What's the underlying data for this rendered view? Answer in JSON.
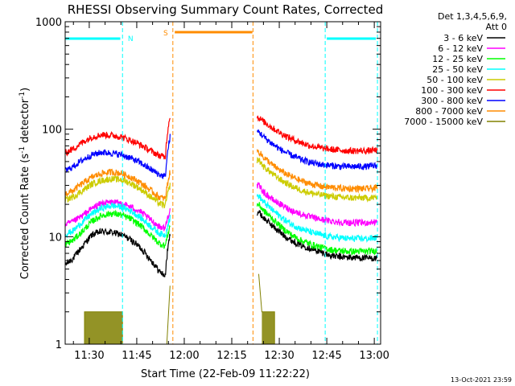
{
  "chart_data": {
    "type": "line",
    "title": "RHESSI Observing Summary Count Rates, Corrected",
    "xlabel": "Start Time (22-Feb-09 11:22:22)",
    "ylabel": "Corrected Count Rate (s",
    "ylabel_sup1": "-1",
    "ylabel_mid": " detector",
    "ylabel_sup2": "-1",
    "ylabel_end": ")",
    "yscale": "log",
    "ylim": [
      1,
      1000
    ],
    "xlim_min": [
      22.4,
      122.0
    ],
    "x_ticks": [
      {
        "value": 30,
        "label": "11:30"
      },
      {
        "value": 45,
        "label": "11:45"
      },
      {
        "value": 60,
        "label": "12:00"
      },
      {
        "value": 75,
        "label": "12:15"
      },
      {
        "value": 90,
        "label": "12:30"
      },
      {
        "value": 105,
        "label": "12:45"
      },
      {
        "value": 120,
        "label": "13:00"
      }
    ],
    "y_ticks": [
      {
        "value": 1,
        "label": "1"
      },
      {
        "value": 10,
        "label": "10"
      },
      {
        "value": 100,
        "label": "100"
      },
      {
        "value": 1000,
        "label": "1000"
      }
    ],
    "legend": {
      "placement": "top-right",
      "header1": "Det 1,3,4,5,6,9,",
      "header2": "Att 0"
    },
    "gaps": [
      [
        55.6,
        83.0
      ]
    ],
    "series": [
      {
        "name": "3 - 6 keV",
        "color": "#000000",
        "x": [
          22.4,
          25,
          28,
          31,
          34,
          37,
          40,
          43,
          46,
          49,
          52,
          54,
          55.5,
          83.5,
          85,
          88,
          91,
          94,
          97,
          100,
          103,
          106,
          109,
          112,
          115,
          118,
          121
        ],
        "values": [
          5.5,
          6.3,
          8.2,
          10.5,
          11.2,
          11.0,
          10.5,
          9.4,
          8.0,
          6.3,
          4.8,
          4.3,
          10.5,
          17,
          15,
          12.5,
          10.5,
          9.2,
          8.3,
          7.8,
          7.2,
          6.7,
          6.5,
          6.4,
          6.4,
          6.3,
          6.3
        ]
      },
      {
        "name": "6 - 12 keV",
        "color": "#ff00ff",
        "x": [
          22.4,
          25,
          28,
          31,
          34,
          37,
          40,
          43,
          46,
          49,
          52,
          54,
          55.5,
          83.5,
          85,
          88,
          91,
          94,
          97,
          100,
          103,
          106,
          109,
          112,
          115,
          118,
          121
        ],
        "values": [
          13,
          13.8,
          15.8,
          18.5,
          20.5,
          21,
          20.5,
          19,
          17.2,
          14.6,
          12.5,
          12,
          18,
          30,
          26,
          22,
          19.5,
          17.5,
          16.2,
          15.2,
          14.5,
          14,
          13.7,
          13.5,
          13.5,
          13.5,
          13.8
        ]
      },
      {
        "name": "12 - 25 keV",
        "color": "#00ff00",
        "x": [
          22.4,
          25,
          28,
          31,
          34,
          37,
          40,
          43,
          46,
          49,
          52,
          54,
          55.5,
          83.5,
          85,
          88,
          91,
          94,
          97,
          100,
          103,
          106,
          109,
          112,
          115,
          118,
          121
        ],
        "values": [
          8.5,
          9.3,
          11.3,
          14,
          15.8,
          16.5,
          16,
          14.7,
          12.8,
          10.6,
          8.7,
          8.2,
          12.5,
          20,
          17.5,
          14.5,
          12,
          10.3,
          9.2,
          8.5,
          8,
          7.6,
          7.4,
          7.3,
          7.3,
          7.3,
          7.4
        ]
      },
      {
        "name": "25 - 50 keV",
        "color": "#00ffff",
        "x": [
          22.4,
          25,
          28,
          31,
          34,
          37,
          40,
          43,
          46,
          49,
          52,
          54,
          55.5,
          83.5,
          85,
          88,
          91,
          94,
          97,
          100,
          103,
          106,
          109,
          112,
          115,
          118,
          121
        ],
        "values": [
          10.5,
          11.4,
          13.8,
          16.5,
          18.5,
          19.5,
          19,
          17.5,
          15.2,
          12.8,
          10.8,
          10.3,
          15,
          24,
          21,
          17.5,
          14.8,
          13,
          11.8,
          11,
          10.4,
          10,
          9.8,
          9.6,
          9.6,
          9.6,
          9.8
        ]
      },
      {
        "name": "50 - 100 keV",
        "color": "#cccc00",
        "x": [
          22.4,
          25,
          28,
          31,
          34,
          37,
          40,
          43,
          46,
          49,
          52,
          54,
          55.5,
          83.5,
          85,
          88,
          91,
          94,
          97,
          100,
          103,
          106,
          109,
          112,
          115,
          118,
          121
        ],
        "values": [
          22,
          23.5,
          27,
          31,
          33.5,
          34.5,
          34,
          31.5,
          28,
          24,
          20.5,
          19.5,
          30,
          52,
          45,
          38,
          33,
          29.5,
          27,
          25.5,
          24.5,
          23.8,
          23.3,
          23,
          23,
          23,
          23.2
        ]
      },
      {
        "name": "100 - 300 keV",
        "color": "#ff0000",
        "x": [
          22.4,
          25,
          28,
          31,
          34,
          37,
          40,
          43,
          46,
          49,
          52,
          54,
          55.5,
          83.5,
          85,
          88,
          91,
          94,
          97,
          100,
          103,
          106,
          109,
          112,
          115,
          118,
          121
        ],
        "values": [
          60,
          66,
          76,
          85,
          89,
          88,
          85,
          79,
          72,
          64,
          57,
          55,
          135,
          128,
          118,
          102,
          90,
          81,
          75,
          70,
          67,
          65,
          64,
          63,
          63,
          63,
          64
        ]
      },
      {
        "name": "300 - 800 keV",
        "color": "#0000ff",
        "x": [
          22.4,
          25,
          28,
          31,
          34,
          37,
          40,
          43,
          46,
          49,
          52,
          54,
          55.5,
          83.5,
          85,
          88,
          91,
          94,
          97,
          100,
          103,
          106,
          109,
          112,
          115,
          118,
          121
        ],
        "values": [
          41,
          45,
          52,
          58,
          61,
          60,
          58,
          54,
          49,
          43,
          38,
          36,
          85,
          95,
          85,
          72,
          63,
          57,
          52,
          49,
          47,
          46,
          45,
          45,
          45,
          45,
          46
        ]
      },
      {
        "name": "800 - 7000 keV",
        "color": "#ff8c00",
        "x": [
          22.4,
          25,
          28,
          31,
          34,
          37,
          40,
          43,
          46,
          49,
          52,
          54,
          55.5,
          83.5,
          85,
          88,
          91,
          94,
          97,
          100,
          103,
          106,
          109,
          112,
          115,
          118,
          121
        ],
        "values": [
          25,
          27,
          31.5,
          36,
          39,
          40,
          39,
          36,
          32,
          27.5,
          23.5,
          22.5,
          40,
          62,
          55,
          46,
          40,
          36,
          33,
          31,
          29.5,
          28.8,
          28.3,
          28,
          28,
          28,
          28.5
        ]
      },
      {
        "name": "7000 - 15000 keV",
        "color": "#808000",
        "x": [
          22.4,
          28.5,
          28.5,
          40.5,
          40.5,
          54.5,
          55.5,
          83.5,
          84.5,
          88.5,
          88.5,
          121
        ],
        "values": [
          1,
          1,
          2.0,
          2.0,
          1,
          1,
          3.5,
          4.5,
          2.0,
          2.0,
          1,
          1
        ]
      }
    ],
    "markers": [
      {
        "kind": "night",
        "label": "N",
        "color": "#00ffff",
        "positions": [
          22.4,
          40.5,
          104.5,
          121.0
        ],
        "bars": [
          [
            22.4,
            39.8
          ],
          [
            105.0,
            120.5
          ]
        ]
      },
      {
        "kind": "saa",
        "label": "S",
        "color": "#ff8c00",
        "positions": [
          56.4,
          81.7
        ],
        "bars": [
          [
            57.0,
            81.5
          ]
        ]
      }
    ],
    "timestamp": "13-Oct-2021 23:59"
  }
}
